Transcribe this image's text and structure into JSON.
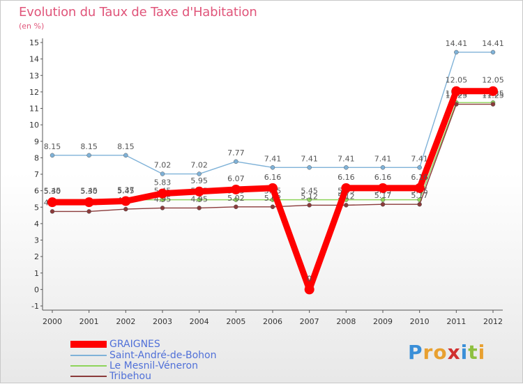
{
  "title": "Evolution du Taux de Taxe d'Habitation",
  "subtitle": "(en %)",
  "logo": [
    "P",
    "r",
    "o",
    "x",
    "i",
    "t",
    "i"
  ],
  "chart_data": {
    "type": "line",
    "title": "Evolution du Taux de Taxe d'Habitation",
    "ylabel": "(en %)",
    "xlabel": "",
    "x": [
      "2000",
      "2001",
      "2002",
      "2003",
      "2004",
      "2005",
      "2006",
      "2007",
      "2008",
      "2009",
      "2010",
      "2011",
      "2012"
    ],
    "yticks": [
      -1,
      0,
      1,
      2,
      3,
      4,
      5,
      6,
      7,
      8,
      9,
      10,
      11,
      12,
      13,
      14,
      15
    ],
    "ylim": [
      -1,
      15
    ],
    "series": [
      {
        "name": "Saint-André-de-Bohon",
        "color": "#7fb2d8",
        "values": [
          8.15,
          8.15,
          8.15,
          7.02,
          7.02,
          7.77,
          7.41,
          7.41,
          7.41,
          7.41,
          7.41,
          14.41,
          14.41
        ],
        "labels": [
          "8.15",
          "8.15",
          "8.15",
          "7.02",
          "7.02",
          "7.77",
          "7.41",
          "7.41",
          "7.41",
          "7.41",
          "7.41",
          "14.41",
          "14.41"
        ]
      },
      {
        "name": "Le Mesnil-Véneron",
        "color": "#8ed45a",
        "values": [
          5.45,
          5.45,
          5.45,
          5.45,
          5.45,
          5.45,
          5.45,
          5.45,
          5.45,
          5.45,
          5.45,
          11.35,
          11.35
        ],
        "labels": [
          "5.45",
          "5.45",
          "5.45",
          "5.45",
          "5.45",
          "5.45",
          "5.45",
          "5.45",
          "5.45",
          "5.45",
          "5.45",
          "11.35",
          "11.35"
        ]
      },
      {
        "name": "Tribehou",
        "color": "#8a3a3a",
        "values": [
          4.74,
          4.74,
          4.88,
          4.95,
          4.95,
          5.02,
          5.02,
          5.12,
          5.12,
          5.17,
          5.17,
          11.25,
          11.25
        ],
        "labels": [
          "4.74",
          "4.74",
          "4.88",
          "4.95",
          "4.95",
          "5.02",
          "5.02",
          "5.12",
          "5.12",
          "5.17",
          "5.17",
          "11.25",
          "11.25"
        ]
      },
      {
        "name": "GRAIGNES",
        "color": "#ff0000",
        "values": [
          5.3,
          5.3,
          5.37,
          5.83,
          5.95,
          6.07,
          6.16,
          0,
          6.16,
          6.16,
          6.16,
          12.05,
          12.05
        ],
        "labels": [
          "5.30",
          "5.30",
          "5.37",
          "5.83",
          "5.95",
          "6.07",
          "6.16",
          "0",
          "6.16",
          "6.16",
          "6.16",
          "12.05",
          "12.05"
        ]
      }
    ],
    "legend_position": "bottom-left",
    "grid": false
  }
}
